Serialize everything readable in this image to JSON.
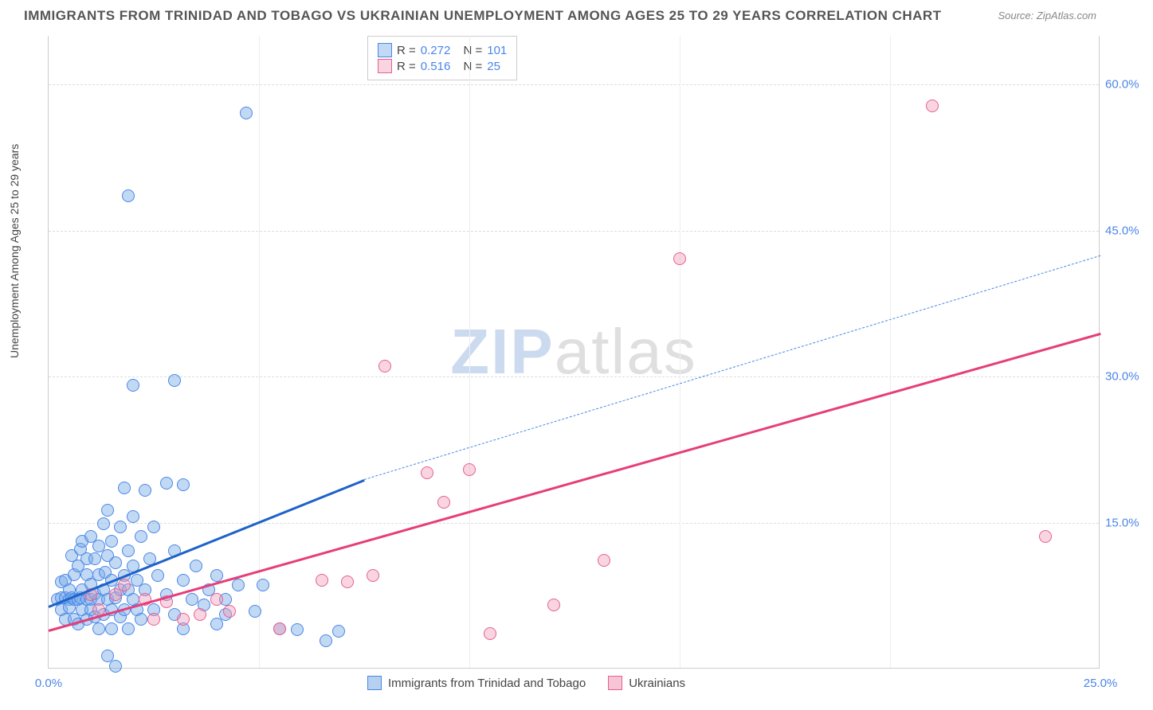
{
  "title": "IMMIGRANTS FROM TRINIDAD AND TOBAGO VS UKRAINIAN UNEMPLOYMENT AMONG AGES 25 TO 29 YEARS CORRELATION CHART",
  "source": "Source: ZipAtlas.com",
  "y_axis_label": "Unemployment Among Ages 25 to 29 years",
  "watermark_a": "ZIP",
  "watermark_b": "atlas",
  "chart": {
    "type": "scatter",
    "xlim": [
      0,
      25
    ],
    "ylim": [
      0,
      65
    ],
    "xticks": [
      0.0,
      25.0
    ],
    "yticks": [
      15.0,
      30.0,
      45.0,
      60.0
    ],
    "xtick_labels": [
      "0.0%",
      "25.0%"
    ],
    "ytick_labels": [
      "15.0%",
      "30.0%",
      "45.0%",
      "60.0%"
    ],
    "ygrid": [
      15.0,
      30.0,
      45.0,
      60.0
    ],
    "xgrid": [
      5.0,
      10.0,
      15.0,
      20.0
    ],
    "background_color": "#ffffff",
    "grid_color": "#dddddd",
    "axis_color": "#cccccc",
    "tick_font_color": "#4a86e8",
    "tick_fontsize": 15,
    "title_fontsize": 17,
    "title_color": "#555555",
    "series": [
      {
        "name": "Immigrants from Trinidad and Tobago",
        "marker_size": 16,
        "fill": "rgba(120,170,230,0.45)",
        "stroke": "#4a86e8",
        "stroke_width": 1,
        "trend": {
          "x0": 0.0,
          "y0": 6.5,
          "x1": 7.5,
          "y1": 19.5,
          "solid_color": "#1e62c9",
          "solid_width": 3,
          "dash_x1": 25.0,
          "dash_y1": 42.5,
          "dash_color": "#4a86e8",
          "dash_width": 1.5
        },
        "R_label": "R =",
        "R_value": "0.272",
        "N_label": "N =",
        "N_value": "101",
        "points": [
          [
            0.2,
            7.0
          ],
          [
            0.3,
            7.2
          ],
          [
            0.3,
            6.0
          ],
          [
            0.3,
            8.8
          ],
          [
            0.4,
            7.2
          ],
          [
            0.4,
            5.0
          ],
          [
            0.4,
            9.0
          ],
          [
            0.5,
            7.0
          ],
          [
            0.5,
            6.2
          ],
          [
            0.5,
            8.0
          ],
          [
            0.55,
            7.2
          ],
          [
            0.55,
            11.5
          ],
          [
            0.6,
            7.0
          ],
          [
            0.6,
            5.0
          ],
          [
            0.6,
            9.6
          ],
          [
            0.7,
            7.0
          ],
          [
            0.7,
            10.5
          ],
          [
            0.7,
            4.5
          ],
          [
            0.75,
            7.2
          ],
          [
            0.75,
            12.2
          ],
          [
            0.8,
            6.0
          ],
          [
            0.8,
            8.0
          ],
          [
            0.8,
            13.0
          ],
          [
            0.9,
            7.0
          ],
          [
            0.9,
            9.6
          ],
          [
            0.9,
            5.0
          ],
          [
            0.9,
            11.2
          ],
          [
            1.0,
            7.0
          ],
          [
            1.0,
            8.6
          ],
          [
            1.0,
            6.0
          ],
          [
            1.0,
            13.5
          ],
          [
            1.1,
            11.2
          ],
          [
            1.1,
            7.6
          ],
          [
            1.1,
            5.2
          ],
          [
            1.2,
            7.0
          ],
          [
            1.2,
            9.6
          ],
          [
            1.2,
            12.5
          ],
          [
            1.2,
            4.0
          ],
          [
            1.3,
            8.0
          ],
          [
            1.3,
            14.8
          ],
          [
            1.3,
            5.5
          ],
          [
            1.35,
            9.8
          ],
          [
            1.4,
            1.2
          ],
          [
            1.4,
            7.0
          ],
          [
            1.4,
            11.5
          ],
          [
            1.4,
            16.2
          ],
          [
            1.5,
            6.0
          ],
          [
            1.5,
            9.0
          ],
          [
            1.5,
            4.0
          ],
          [
            1.5,
            13.0
          ],
          [
            1.6,
            7.2
          ],
          [
            1.6,
            10.8
          ],
          [
            1.6,
            0.2
          ],
          [
            1.7,
            8.0
          ],
          [
            1.7,
            5.2
          ],
          [
            1.7,
            14.5
          ],
          [
            1.8,
            18.5
          ],
          [
            1.8,
            9.5
          ],
          [
            1.8,
            6.0
          ],
          [
            1.9,
            8.0
          ],
          [
            1.9,
            12.0
          ],
          [
            1.9,
            4.0
          ],
          [
            1.9,
            48.5
          ],
          [
            2.0,
            7.0
          ],
          [
            2.0,
            15.5
          ],
          [
            2.0,
            10.5
          ],
          [
            2.0,
            29.0
          ],
          [
            2.1,
            6.0
          ],
          [
            2.1,
            9.0
          ],
          [
            2.2,
            13.5
          ],
          [
            2.2,
            5.0
          ],
          [
            2.3,
            18.2
          ],
          [
            2.3,
            8.0
          ],
          [
            2.4,
            11.2
          ],
          [
            2.5,
            6.0
          ],
          [
            2.5,
            14.5
          ],
          [
            2.6,
            9.5
          ],
          [
            2.8,
            7.5
          ],
          [
            2.8,
            19.0
          ],
          [
            3.0,
            5.5
          ],
          [
            3.0,
            12.0
          ],
          [
            3.0,
            29.5
          ],
          [
            3.2,
            9.0
          ],
          [
            3.2,
            4.0
          ],
          [
            3.2,
            18.8
          ],
          [
            3.4,
            7.0
          ],
          [
            3.5,
            10.5
          ],
          [
            3.7,
            6.5
          ],
          [
            3.8,
            8.0
          ],
          [
            4.0,
            4.5
          ],
          [
            4.0,
            9.5
          ],
          [
            4.2,
            7.0
          ],
          [
            4.2,
            5.5
          ],
          [
            4.5,
            8.5
          ],
          [
            4.7,
            57.0
          ],
          [
            4.9,
            5.8
          ],
          [
            5.1,
            8.5
          ],
          [
            5.5,
            4.0
          ],
          [
            5.9,
            3.9
          ],
          [
            6.6,
            2.8
          ],
          [
            6.9,
            3.8
          ]
        ]
      },
      {
        "name": "Ukrainians",
        "marker_size": 16,
        "fill": "rgba(240,150,180,0.4)",
        "stroke": "#e66090",
        "stroke_width": 1,
        "trend": {
          "x0": 0.0,
          "y0": 4.0,
          "x1": 25.0,
          "y1": 34.5,
          "solid_color": "#e63e7a",
          "solid_width": 3
        },
        "R_label": "R =",
        "R_value": "0.516",
        "N_label": "N =",
        "N_value": "25",
        "points": [
          [
            1.0,
            7.5
          ],
          [
            1.2,
            6.0
          ],
          [
            1.6,
            7.5
          ],
          [
            1.8,
            8.5
          ],
          [
            2.3,
            7.0
          ],
          [
            2.5,
            5.0
          ],
          [
            2.8,
            6.8
          ],
          [
            3.2,
            5.0
          ],
          [
            3.6,
            5.5
          ],
          [
            4.0,
            7.0
          ],
          [
            4.3,
            5.8
          ],
          [
            5.5,
            4.0
          ],
          [
            6.5,
            9.0
          ],
          [
            7.1,
            8.8
          ],
          [
            7.7,
            9.5
          ],
          [
            8.0,
            31.0
          ],
          [
            9.0,
            20.0
          ],
          [
            9.4,
            17.0
          ],
          [
            10.0,
            20.4
          ],
          [
            10.5,
            3.5
          ],
          [
            12.0,
            6.5
          ],
          [
            13.2,
            11.0
          ],
          [
            15.0,
            42.0
          ],
          [
            21.0,
            57.7
          ],
          [
            23.7,
            13.5
          ]
        ]
      }
    ]
  },
  "bottom_legend": [
    {
      "label": "Immigrants from Trinidad and Tobago",
      "fill": "rgba(120,170,230,0.55)",
      "stroke": "#4a86e8"
    },
    {
      "label": "Ukrainians",
      "fill": "rgba(240,150,180,0.55)",
      "stroke": "#e66090"
    }
  ]
}
